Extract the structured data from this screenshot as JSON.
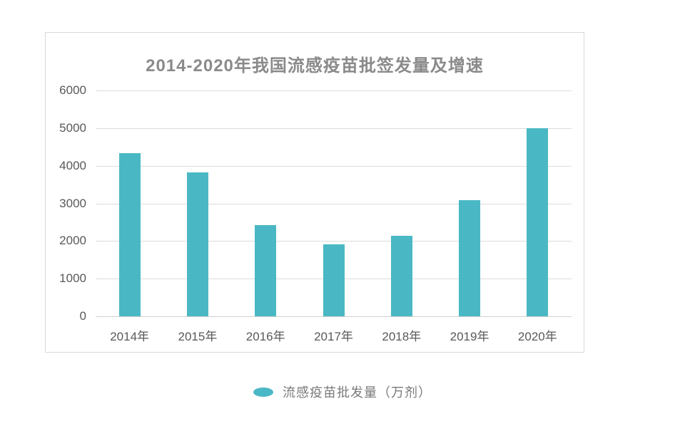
{
  "chart_data": {
    "type": "bar",
    "title": "2014-2020年我国流感疫苗批签发量及增速",
    "categories": [
      "2014年",
      "2015年",
      "2016年",
      "2017年",
      "2018年",
      "2019年",
      "2020年"
    ],
    "series": [
      {
        "name": "流感疫苗批发量（万剂）",
        "values": [
          4333,
          3832,
          2428,
          1906,
          2132,
          3078,
          5004
        ]
      }
    ],
    "xlabel": "",
    "ylabel": "",
    "ylim": [
      0,
      6000
    ],
    "yticks": [
      0,
      1000,
      2000,
      3000,
      4000,
      5000,
      6000
    ],
    "grid": true,
    "legend_position": "bottom-center",
    "legend": {
      "label": "流感疫苗批发量（万剂）",
      "marker": "ellipse-icon"
    },
    "colors": {
      "bar": "#4ab8c4",
      "title": "#8a8a8a",
      "axis_labels": "#595959",
      "gridline": "#dcdcdc",
      "legend_text": "#7a7a7a",
      "panel_border": "#d9d9d9",
      "background": "#ffffff"
    }
  }
}
